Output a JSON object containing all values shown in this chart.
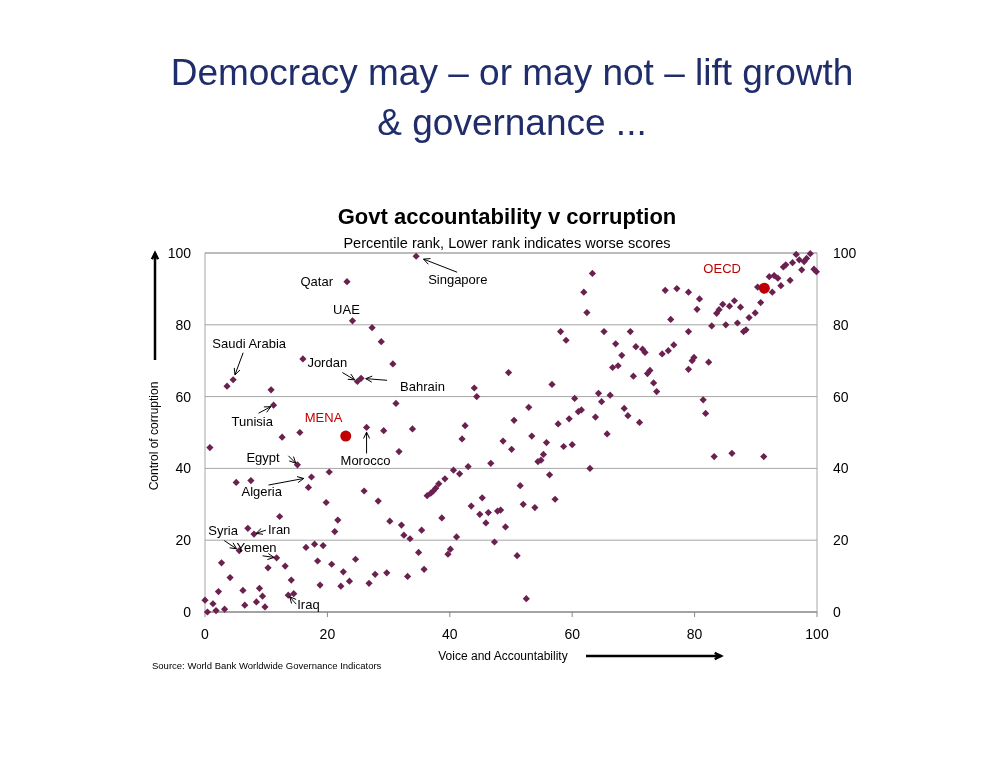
{
  "chart_data": {
    "type": "scatter",
    "title": "Govt accountability v corruption",
    "subtitle": "Percentile rank, Lower rank indicates worse scores",
    "xlabel": "Voice and Accountability",
    "ylabel": "Control of corruption",
    "xlim": [
      0,
      100
    ],
    "xticks": [
      0,
      20,
      40,
      60,
      80,
      100
    ],
    "ylim": [
      0,
      100
    ],
    "yticks": [
      0,
      20,
      40,
      60,
      80,
      100
    ],
    "y2lim": [
      0,
      100
    ],
    "y2ticks": [
      0,
      20,
      40,
      60,
      80,
      100
    ],
    "grid": "y",
    "series": [
      {
        "color": "#6b2150",
        "marker": "diamond",
        "x": [
          23.2,
          24.1,
          27.3,
          28.8,
          16.0,
          30.7,
          24.9,
          25.5,
          3.6,
          4.6,
          10.8,
          31.2,
          11.2,
          26.4,
          29.2,
          33.9,
          15.5,
          12.6,
          0.8,
          31.7,
          15.1,
          20.3,
          17.4,
          5.1,
          7.5,
          16.9,
          26.0,
          28.3,
          19.8,
          12.2,
          21.7,
          30.2,
          21.2,
          32.1,
          32.5,
          33.5,
          7.0,
          8.0,
          5.6,
          11.7,
          10.3,
          13.1,
          16.5,
          17.9,
          19.3,
          18.4,
          20.7,
          24.6,
          22.6,
          18.8,
          22.2,
          23.6,
          26.8,
          27.8,
          29.7,
          33.1,
          2.7,
          4.1,
          14.1,
          2.2,
          6.2,
          8.9,
          9.4,
          8.4,
          6.5,
          9.8,
          13.6,
          14.5,
          0.0,
          1.3,
          0.4,
          1.8,
          3.2,
          34.5,
          63.3,
          61.9,
          62.4,
          58.1,
          59.0,
          65.2,
          67.1,
          66.6,
          67.5,
          49.6,
          56.7,
          44.0,
          44.4,
          64.3,
          64.8,
          66.2,
          60.4,
          52.9,
          61.0,
          61.5,
          59.5,
          50.5,
          63.8,
          57.7,
          42.5,
          42.0,
          53.4,
          65.7,
          58.6,
          60.0,
          48.7,
          50.1,
          55.8,
          55.3,
          54.9,
          54.4,
          46.7,
          43.0,
          40.6,
          41.6,
          62.9,
          39.2,
          38.2,
          37.7,
          37.3,
          36.9,
          36.3,
          56.3,
          51.5,
          57.2,
          52.0,
          53.9,
          45.3,
          43.5,
          44.9,
          46.3,
          47.8,
          48.3,
          45.9,
          49.1,
          38.7,
          35.4,
          41.1,
          40.1,
          39.7,
          47.3,
          34.9,
          51.0,
          35.8,
          52.5,
          98.9,
          96.6,
          97.1,
          96.0,
          98.3,
          97.9,
          94.5,
          94.9,
          97.5,
          99.5,
          99.9,
          93.0,
          93.6,
          92.2,
          95.6,
          94.1,
          90.3,
          92.7,
          90.8,
          89.9,
          88.9,
          75.2,
          77.1,
          79.0,
          80.8,
          80.4,
          76.1,
          84.6,
          85.7,
          86.5,
          87.5,
          84.0,
          83.6,
          82.8,
          85.1,
          87.0,
          88.4,
          88.0,
          79.0,
          69.5,
          70.4,
          71.5,
          71.9,
          76.6,
          75.7,
          74.7,
          68.1,
          79.9,
          79.6,
          82.3,
          79.0,
          72.7,
          72.3,
          70.0,
          73.3,
          73.8,
          68.5,
          69.1,
          71.0,
          81.4,
          81.8,
          83.2,
          86.1,
          91.3
        ],
        "values": [
          92.0,
          81.1,
          79.2,
          75.3,
          70.5,
          69.1,
          64.2,
          65.1,
          62.9,
          64.7,
          61.9,
          58.1,
          57.6,
          51.4,
          50.5,
          51.0,
          50.0,
          48.7,
          45.8,
          44.7,
          41.0,
          39.0,
          37.6,
          36.1,
          36.6,
          34.7,
          33.7,
          30.9,
          30.5,
          26.6,
          25.6,
          25.3,
          22.4,
          24.2,
          21.4,
          20.4,
          23.3,
          21.7,
          17.1,
          15.1,
          12.3,
          12.8,
          18.0,
          18.9,
          18.5,
          14.2,
          13.3,
          14.7,
          11.2,
          7.5,
          7.2,
          8.6,
          8.0,
          10.5,
          10.9,
          9.9,
          13.7,
          9.6,
          8.9,
          5.7,
          6.0,
          6.6,
          4.4,
          2.8,
          1.9,
          1.4,
          4.7,
          5.1,
          3.3,
          2.3,
          0.0,
          0.4,
          0.8,
          99.1,
          94.3,
          89.1,
          83.4,
          78.1,
          75.7,
          78.1,
          74.7,
          68.1,
          68.6,
          66.7,
          63.4,
          62.4,
          60.0,
          60.9,
          58.6,
          60.4,
          59.5,
          57.0,
          55.8,
          56.3,
          53.8,
          53.4,
          54.3,
          52.4,
          51.9,
          48.2,
          49.0,
          49.6,
          46.1,
          46.6,
          47.6,
          45.3,
          47.2,
          43.9,
          42.3,
          41.9,
          41.4,
          40.5,
          39.5,
          38.5,
          40.0,
          37.1,
          35.7,
          34.5,
          33.7,
          33.1,
          32.4,
          38.2,
          35.2,
          31.4,
          30.0,
          29.1,
          31.8,
          29.5,
          27.2,
          27.7,
          28.1,
          28.4,
          24.8,
          23.7,
          26.2,
          22.8,
          20.9,
          17.5,
          16.1,
          19.5,
          16.6,
          15.7,
          11.9,
          3.7,
          99.8,
          99.6,
          98.1,
          97.3,
          98.5,
          97.6,
          96.1,
          96.7,
          95.3,
          95.5,
          94.8,
          93.7,
          93.0,
          93.4,
          92.4,
          90.9,
          90.5,
          89.1,
          86.2,
          83.3,
          82.0,
          89.6,
          90.1,
          89.1,
          87.2,
          84.3,
          81.5,
          85.7,
          85.2,
          86.7,
          84.9,
          84.2,
          83.2,
          79.7,
          80.0,
          80.5,
          78.6,
          78.1,
          78.1,
          78.1,
          73.9,
          73.2,
          72.3,
          74.4,
          72.8,
          71.9,
          71.5,
          70.9,
          70.0,
          69.6,
          67.6,
          67.3,
          66.4,
          65.7,
          63.8,
          61.4,
          56.7,
          54.7,
          52.8,
          59.1,
          55.3,
          43.3,
          44.2,
          43.3
        ]
      },
      {
        "name": "MENA",
        "color": "#c00000",
        "marker": "circle",
        "x": [
          23.0
        ],
        "values": [
          49.0
        ]
      },
      {
        "name": "OECD",
        "color": "#c00000",
        "marker": "circle",
        "x": [
          91.4
        ],
        "values": [
          90.2
        ]
      }
    ],
    "annotations": [
      "Democracy may – or may not – lift growth & governance ...",
      "Source: World Bank Worldwide Governance Indicators",
      {
        "text": "Qatar",
        "x": 23.2,
        "y": 92.0
      },
      {
        "text": "UAE",
        "x": 24.1,
        "y": 81.1
      },
      {
        "text": "Saudi Arabia",
        "x": 4.6,
        "y": 64.7
      },
      {
        "text": "Jordan",
        "x": 24.9,
        "y": 64.2
      },
      {
        "text": "Bahrain",
        "x": 25.5,
        "y": 65.1
      },
      {
        "text": "Tunisia",
        "x": 11.2,
        "y": 57.6
      },
      {
        "text": "Egypt",
        "x": 15.1,
        "y": 41.0
      },
      {
        "text": "Morocco",
        "x": 26.4,
        "y": 51.4
      },
      {
        "text": "Algeria",
        "x": 17.4,
        "y": 37.6
      },
      {
        "text": "Syria",
        "x": 5.6,
        "y": 17.1
      },
      {
        "text": "Iran",
        "x": 8.0,
        "y": 21.7
      },
      {
        "text": "Yemen",
        "x": 11.7,
        "y": 15.1
      },
      {
        "text": "Iraq",
        "x": 13.6,
        "y": 4.7
      },
      {
        "text": "Singapore",
        "x": 34.5,
        "y": 99.1
      }
    ]
  }
}
